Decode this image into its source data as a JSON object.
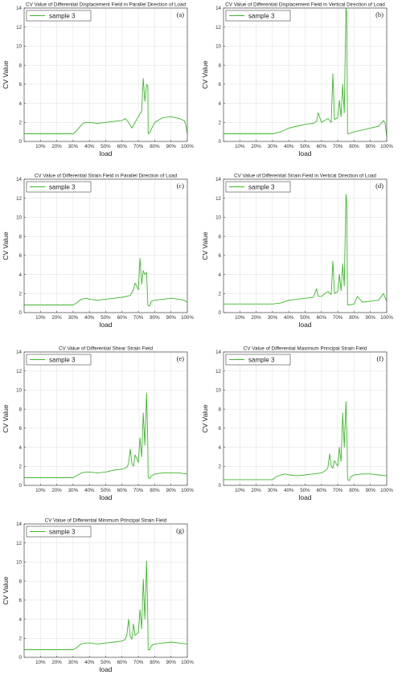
{
  "figure": {
    "series_color": "#3cb82a",
    "grid_color": "#e3e3e3"
  },
  "chart_data": [
    {
      "type": "line",
      "panel_letter": "(a)",
      "title": "CV Value of Differential Displacement Field in Parallel Direction of Load",
      "xlabel": "load",
      "ylabel": "CV Value",
      "xlim": [
        0,
        100
      ],
      "ylim": [
        0,
        14
      ],
      "xticks": [
        "10%",
        "20%",
        "30%",
        "40%",
        "50%",
        "60%",
        "70%",
        "80%",
        "90%",
        "100%"
      ],
      "yticks": [
        "0",
        "2",
        "4",
        "6",
        "8",
        "10",
        "12",
        "14"
      ],
      "grid": true,
      "legend": "top-left",
      "series": [
        {
          "name": "sample 3",
          "x": [
            0,
            10,
            20,
            30,
            32,
            34,
            36,
            38,
            40,
            45,
            50,
            55,
            60,
            62,
            64,
            66,
            68,
            70,
            72,
            73,
            74,
            75,
            75.8,
            76,
            76.5,
            77,
            78,
            80,
            85,
            90,
            95,
            98,
            99,
            100
          ],
          "y": [
            0.8,
            0.8,
            0.8,
            0.8,
            1.1,
            1.5,
            1.9,
            2.0,
            2.0,
            1.9,
            2.0,
            2.1,
            2.2,
            2.4,
            2.0,
            1.4,
            2.0,
            2.6,
            3.2,
            6.6,
            4.2,
            6.0,
            5.8,
            0.8,
            0.9,
            0.9,
            1.3,
            2.0,
            2.5,
            2.6,
            2.4,
            2.2,
            1.8,
            0.8
          ]
        }
      ]
    },
    {
      "type": "line",
      "panel_letter": "(b)",
      "title": "CV Value of Differential Displacement Field in Vertical Direction of Load",
      "xlabel": "load",
      "ylabel": "CV Value",
      "xlim": [
        0,
        100
      ],
      "ylim": [
        0,
        14
      ],
      "xticks": [
        "10%",
        "20%",
        "30%",
        "40%",
        "50%",
        "60%",
        "70%",
        "80%",
        "90%",
        "100%"
      ],
      "yticks": [
        "0",
        "2",
        "4",
        "6",
        "8",
        "10",
        "12",
        "14"
      ],
      "grid": true,
      "legend": "top-left",
      "series": [
        {
          "name": "sample 3",
          "x": [
            0,
            10,
            20,
            30,
            35,
            40,
            45,
            50,
            55,
            57,
            58,
            60,
            62,
            64,
            66,
            67,
            68,
            70,
            71,
            72,
            73,
            74,
            75,
            75.5,
            76,
            76.5,
            80,
            85,
            90,
            95,
            98,
            99,
            100
          ],
          "y": [
            0.8,
            0.8,
            0.8,
            0.8,
            1.0,
            1.4,
            1.6,
            1.8,
            1.9,
            2.1,
            3.0,
            2.0,
            2.2,
            2.4,
            2.0,
            7.1,
            2.3,
            2.5,
            4.3,
            2.6,
            6.0,
            3.0,
            14.0,
            13.5,
            0.8,
            0.8,
            1.0,
            1.2,
            1.4,
            1.6,
            2.2,
            1.9,
            0.5
          ]
        }
      ]
    },
    {
      "type": "line",
      "panel_letter": "(c)",
      "title": "CV Value of Differential Strain Field in Parallel Direction of Load",
      "xlabel": "load",
      "ylabel": "CV Value",
      "xlim": [
        0,
        100
      ],
      "ylim": [
        0,
        14
      ],
      "xticks": [
        "10%",
        "20%",
        "30%",
        "40%",
        "50%",
        "60%",
        "70%",
        "80%",
        "90%",
        "100%"
      ],
      "yticks": [
        "0",
        "2",
        "4",
        "6",
        "8",
        "10",
        "12",
        "14"
      ],
      "grid": true,
      "legend": "top-left",
      "series": [
        {
          "name": "sample 3",
          "x": [
            0,
            10,
            20,
            30,
            32,
            35,
            38,
            40,
            45,
            50,
            55,
            60,
            65,
            67,
            68,
            70,
            71,
            72,
            73,
            74,
            75,
            75.8,
            76,
            77,
            78,
            80,
            85,
            90,
            95,
            98,
            100
          ],
          "y": [
            0.8,
            0.8,
            0.8,
            0.8,
            1.0,
            1.4,
            1.5,
            1.4,
            1.3,
            1.4,
            1.5,
            1.6,
            1.8,
            2.4,
            3.1,
            2.4,
            5.7,
            3.0,
            4.4,
            4.0,
            4.2,
            0.8,
            0.7,
            0.7,
            1.2,
            1.3,
            1.4,
            1.5,
            1.4,
            1.3,
            1.1
          ]
        }
      ]
    },
    {
      "type": "line",
      "panel_letter": "(d)",
      "title": "CV Value of Differential Strain Field in Vertical Direction of Load",
      "xlabel": "load",
      "ylabel": "CV Value",
      "xlim": [
        0,
        100
      ],
      "ylim": [
        0,
        14
      ],
      "xticks": [
        "10%",
        "20%",
        "30%",
        "40%",
        "50%",
        "60%",
        "70%",
        "80%",
        "90%",
        "100%"
      ],
      "yticks": [
        "0",
        "2",
        "4",
        "6",
        "8",
        "10",
        "12",
        "14"
      ],
      "grid": true,
      "legend": "top-left",
      "series": [
        {
          "name": "sample 3",
          "x": [
            0,
            10,
            20,
            30,
            35,
            40,
            45,
            50,
            55,
            57,
            58,
            60,
            62,
            64,
            66,
            67,
            68,
            70,
            71,
            72,
            73,
            74,
            75,
            75.5,
            76,
            77,
            80,
            82,
            85,
            90,
            95,
            98,
            100
          ],
          "y": [
            0.9,
            0.9,
            0.9,
            0.9,
            1.0,
            1.3,
            1.4,
            1.5,
            1.6,
            2.5,
            1.7,
            1.7,
            2.0,
            2.2,
            1.9,
            5.4,
            2.0,
            2.2,
            4.0,
            2.3,
            5.1,
            2.8,
            12.4,
            11.5,
            0.8,
            0.8,
            0.9,
            1.7,
            1.1,
            1.2,
            1.3,
            2.0,
            1.2
          ]
        }
      ]
    },
    {
      "type": "line",
      "panel_letter": "(e)",
      "title": "CV Value of Differential Shear Strain Field",
      "xlabel": "load",
      "ylabel": "CV Value",
      "xlim": [
        0,
        100
      ],
      "ylim": [
        0,
        14
      ],
      "xticks": [
        "10%",
        "20%",
        "30%",
        "40%",
        "50%",
        "60%",
        "70%",
        "80%",
        "90%",
        "100%"
      ],
      "yticks": [
        "0",
        "2",
        "4",
        "6",
        "8",
        "10",
        "12",
        "14"
      ],
      "grid": true,
      "legend": "top-left",
      "series": [
        {
          "name": "sample 3",
          "x": [
            0,
            10,
            20,
            30,
            32,
            35,
            38,
            40,
            45,
            50,
            55,
            60,
            63,
            64,
            65,
            66,
            67,
            68,
            70,
            71,
            72,
            73,
            74,
            75,
            75.7,
            76,
            77,
            78,
            80,
            85,
            90,
            95,
            100
          ],
          "y": [
            0.8,
            0.8,
            0.8,
            0.8,
            1.0,
            1.3,
            1.4,
            1.4,
            1.3,
            1.4,
            1.6,
            1.7,
            1.9,
            2.3,
            3.8,
            2.3,
            2.0,
            3.2,
            2.4,
            5.0,
            3.0,
            7.6,
            4.2,
            9.7,
            5.0,
            0.8,
            0.7,
            1.0,
            1.2,
            1.3,
            1.3,
            1.3,
            1.2
          ]
        }
      ]
    },
    {
      "type": "line",
      "panel_letter": "(f)",
      "title": "CV Value of Differential Maximum Principal Strain Field",
      "xlabel": "load",
      "ylabel": "CV Value",
      "xlim": [
        0,
        100
      ],
      "ylim": [
        0,
        14
      ],
      "xticks": [
        "10%",
        "20%",
        "30%",
        "40%",
        "50%",
        "60%",
        "70%",
        "80%",
        "90%",
        "100%"
      ],
      "yticks": [
        "0",
        "2",
        "4",
        "6",
        "8",
        "10",
        "12",
        "14"
      ],
      "grid": true,
      "legend": "top-left",
      "series": [
        {
          "name": "sample 3",
          "x": [
            0,
            10,
            20,
            30,
            32,
            35,
            38,
            40,
            45,
            50,
            55,
            60,
            63,
            64,
            65,
            66,
            67,
            68,
            70,
            71,
            72,
            73,
            74,
            75,
            75.7,
            76,
            77,
            78,
            80,
            85,
            90,
            95,
            100
          ],
          "y": [
            0.6,
            0.6,
            0.6,
            0.6,
            0.9,
            1.1,
            1.2,
            1.1,
            1.0,
            1.1,
            1.2,
            1.3,
            1.6,
            1.9,
            3.3,
            2.0,
            1.8,
            2.6,
            2.0,
            4.0,
            2.5,
            7.6,
            4.0,
            8.8,
            4.5,
            0.6,
            0.5,
            0.9,
            1.1,
            1.2,
            1.2,
            1.1,
            1.0
          ]
        }
      ]
    },
    {
      "type": "line",
      "panel_letter": "(g)",
      "title": "CV Value of Differential Minimum Principal Strain Field",
      "xlabel": "load",
      "ylabel": "CV Value",
      "xlim": [
        0,
        100
      ],
      "ylim": [
        0,
        14
      ],
      "xticks": [
        "10%",
        "20%",
        "30%",
        "40%",
        "50%",
        "60%",
        "70%",
        "80%",
        "90%",
        "100%"
      ],
      "yticks": [
        "0",
        "2",
        "4",
        "6",
        "8",
        "10",
        "12",
        "14"
      ],
      "grid": true,
      "legend": "top-left",
      "series": [
        {
          "name": "sample 3",
          "x": [
            0,
            10,
            20,
            30,
            32,
            35,
            38,
            40,
            45,
            50,
            55,
            60,
            62,
            63,
            64,
            65,
            66,
            67,
            68,
            70,
            71,
            72,
            73,
            74,
            75,
            75.7,
            76,
            77,
            78,
            80,
            85,
            90,
            95,
            100
          ],
          "y": [
            0.8,
            0.8,
            0.8,
            0.8,
            1.0,
            1.4,
            1.5,
            1.5,
            1.4,
            1.5,
            1.6,
            1.7,
            1.9,
            2.4,
            4.0,
            2.2,
            1.9,
            3.5,
            2.3,
            2.6,
            5.0,
            3.0,
            8.2,
            4.0,
            10.1,
            5.0,
            0.8,
            0.8,
            1.2,
            1.4,
            1.5,
            1.6,
            1.5,
            1.4
          ]
        }
      ]
    }
  ]
}
